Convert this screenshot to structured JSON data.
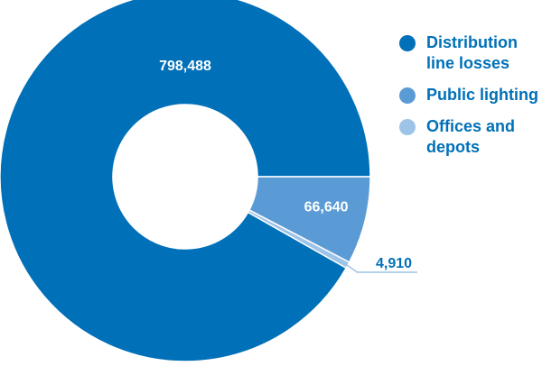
{
  "chart_data": {
    "type": "pie",
    "donut": true,
    "categories": [
      "Distribution line losses",
      "Public lighting",
      "Offices and depots"
    ],
    "values": [
      798488,
      66640,
      4910
    ],
    "value_labels": [
      "798,488",
      "66,640",
      "4,910"
    ],
    "colors": [
      "#0070b8",
      "#5b9bd5",
      "#9dc3e6"
    ],
    "label_colors": [
      "#ffffff",
      "#ffffff",
      "#0070b8"
    ],
    "legend": {
      "placement": "top-right",
      "items": [
        {
          "label": "Distribution line losses",
          "color": "#0070b8"
        },
        {
          "label": "Public lighting",
          "color": "#5b9bd5"
        },
        {
          "label": "Offices and depots",
          "color": "#9dc3e6"
        }
      ]
    }
  }
}
